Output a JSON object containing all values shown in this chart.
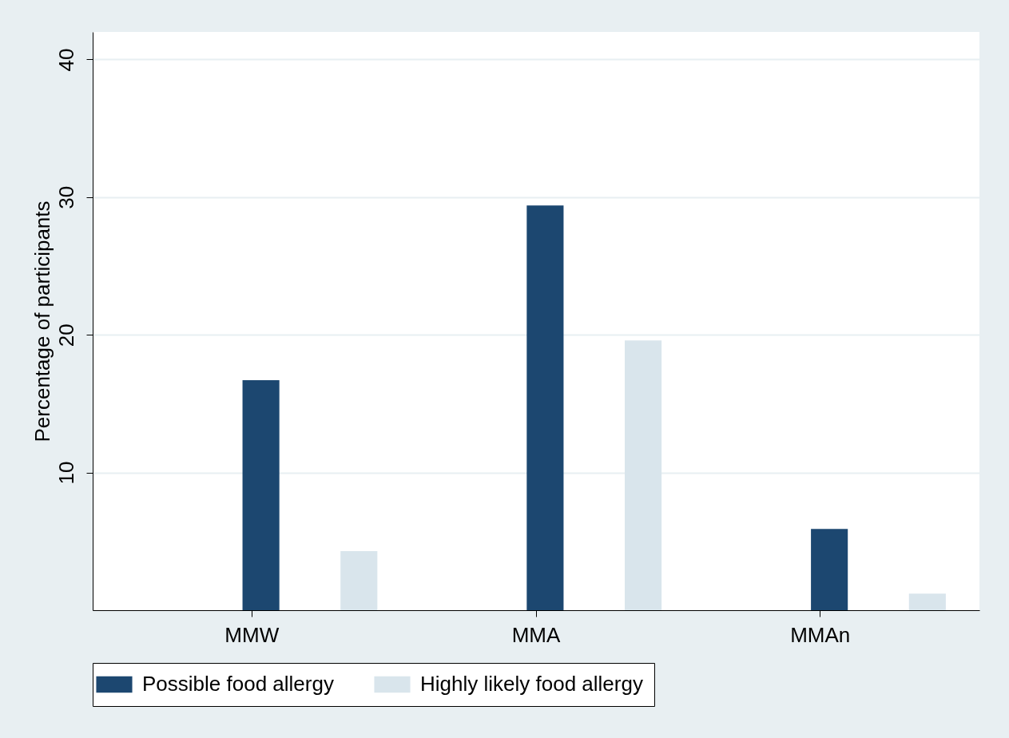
{
  "chart_data": {
    "type": "bar",
    "ylabel": "Percentage of participants",
    "categories": [
      "MMW",
      "MMA",
      "MMAn"
    ],
    "series": [
      {
        "name": "Possible food allergy",
        "color": "#1c4770",
        "values": [
          16.7,
          29.4,
          5.9
        ]
      },
      {
        "name": "Highly likely food allergy",
        "color": "#d9e5ec",
        "values": [
          4.3,
          19.6,
          1.2
        ]
      }
    ],
    "ylim": [
      0,
      42
    ],
    "yticks": [
      10,
      20,
      30,
      40
    ],
    "grid": "y",
    "legend": "bottom"
  }
}
